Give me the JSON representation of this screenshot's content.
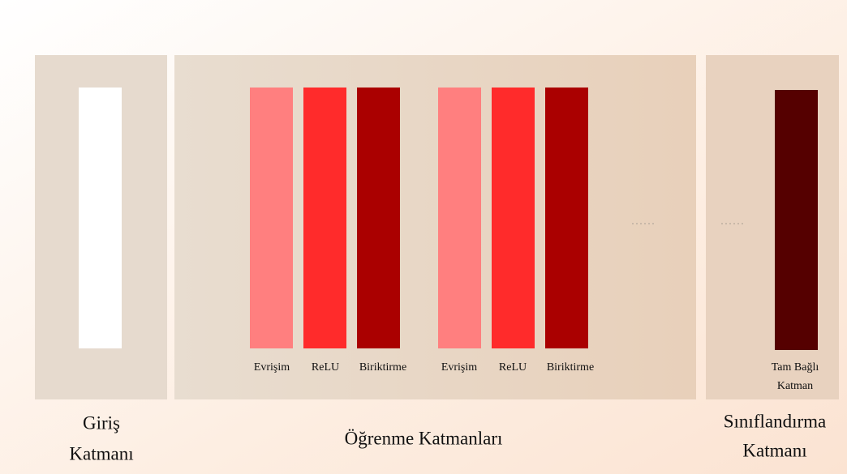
{
  "input_panel": {
    "label_lines": [
      "Giriş",
      "Katmanı"
    ]
  },
  "learning_panel": {
    "label": "Öğrenme Katmanları",
    "layers": [
      "Evrişim",
      "ReLU",
      "Biriktirme",
      "Evrişim",
      "ReLU",
      "Biriktirme"
    ]
  },
  "classification_panel": {
    "label_lines": [
      "Sınıflandırma",
      "Katmanı"
    ],
    "layer_lines": [
      "Tam Bağlı",
      "Katman"
    ]
  }
}
